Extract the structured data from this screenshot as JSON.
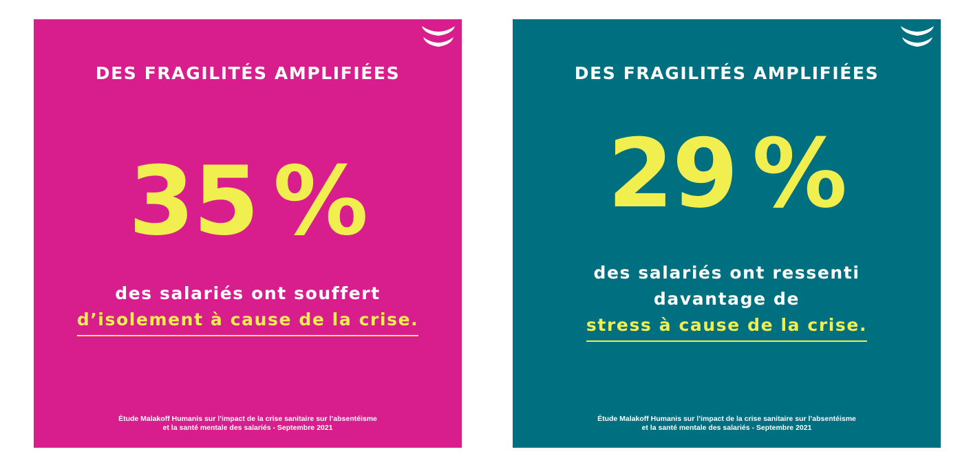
{
  "colors": {
    "accent": "#f1ef4f",
    "text": "#ffffff",
    "left_background": "#d81e8c",
    "right_background": "#006f80"
  },
  "cards": [
    {
      "title": "DES FRAGILITÉS AMPLIFIÉES",
      "stat_number": "35",
      "stat_percent": "%",
      "caption_plain": [
        "des salariés ont souffert"
      ],
      "caption_highlight": "d’isolement à cause de la crise.",
      "source_line1": "Étude Malakoff Humanis sur l’impact de la crise sanitaire sur l’absentéisme",
      "source_line2": "et la santé mentale des salariés - Septembre 2021",
      "logo_icon": "smile-waves-icon"
    },
    {
      "title": "DES FRAGILITÉS AMPLIFIÉES",
      "stat_number": "29",
      "stat_percent": "%",
      "caption_plain": [
        "des salariés ont ressenti",
        "davantage de"
      ],
      "caption_highlight": "stress à cause de la crise.",
      "source_line1": "Étude Malakoff Humanis sur l’impact de la crise sanitaire sur l’absentéisme",
      "source_line2": "et la santé mentale des salariés - Septembre 2021",
      "logo_icon": "smile-waves-icon"
    }
  ]
}
